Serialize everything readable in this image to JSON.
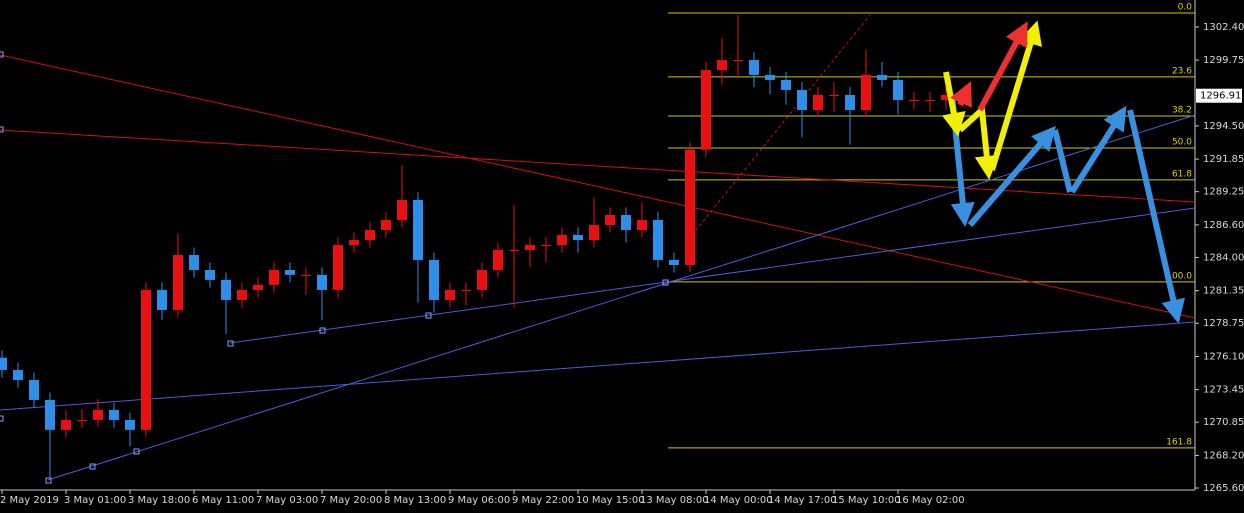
{
  "chart_data": {
    "type": "candlestick",
    "current_price": 1296.91,
    "up_color": "#e81010",
    "down_color": "#2e8fe8",
    "fib_color": "#d4c800",
    "categories": [
      "2 May 2019",
      null,
      null,
      null,
      "3 May 01:00",
      null,
      null,
      null,
      "3 May 18:00",
      null,
      null,
      null,
      "6 May 11:00",
      null,
      null,
      null,
      "7 May 03:00",
      null,
      null,
      null,
      "7 May 20:00",
      null,
      null,
      null,
      "8 May 13:00",
      null,
      null,
      null,
      "9 May 06:00",
      null,
      null,
      null,
      "9 May 22:00",
      null,
      null,
      null,
      "10 May 15:00",
      null,
      null,
      null,
      "13 May 08:00",
      null,
      null,
      null,
      "14 May 00:00",
      null,
      null,
      null,
      "14 May 17:00",
      null,
      null,
      null,
      "15 May 10:00",
      null,
      null,
      null,
      "16 May 02:00",
      null,
      null,
      null
    ],
    "open": [
      1276.0,
      1275.02,
      1274.22,
      1272.63,
      1270.24,
      1271.03,
      1271.03,
      1271.83,
      1271.03,
      1270.24,
      1281.41,
      1279.81,
      1284.2,
      1283.0,
      1282.21,
      1280.61,
      1281.41,
      1281.81,
      1283.0,
      1282.61,
      1282.61,
      1281.41,
      1284.99,
      1285.39,
      1286.19,
      1286.99,
      1288.59,
      1283.8,
      1280.61,
      1281.41,
      1281.41,
      1283.0,
      1284.6,
      1284.6,
      1284.99,
      1284.99,
      1285.8,
      1285.39,
      1286.59,
      1287.39,
      1286.19,
      1286.99,
      1283.8,
      1283.4,
      1292.6,
      1298.96,
      1299.76,
      1299.76,
      1298.57,
      1298.17,
      1297.37,
      1295.77,
      1296.97,
      1296.97,
      1295.77,
      1298.57,
      1298.17,
      1296.57,
      1296.57,
      1296.57
    ],
    "high": [
      1276.6,
      1275.6,
      1274.8,
      1273.2,
      1271.8,
      1271.9,
      1272.7,
      1272.4,
      1271.6,
      1282.0,
      1282.0,
      1285.9,
      1284.8,
      1283.6,
      1282.8,
      1282.0,
      1282.4,
      1283.6,
      1283.6,
      1283.2,
      1283.2,
      1285.6,
      1286.0,
      1286.8,
      1287.6,
      1291.4,
      1289.2,
      1284.4,
      1282.0,
      1282.0,
      1283.6,
      1285.2,
      1288.2,
      1285.6,
      1285.6,
      1286.4,
      1286.4,
      1288.8,
      1288.0,
      1288.0,
      1288.4,
      1287.6,
      1284.4,
      1293.2,
      1299.6,
      1301.5,
      1303.35,
      1300.4,
      1299.2,
      1298.8,
      1298.0,
      1297.6,
      1298.0,
      1297.6,
      1300.6,
      1299.6,
      1298.8,
      1297.2,
      1297.2,
      1298.6
    ],
    "low": [
      1274.4,
      1273.6,
      1272.0,
      1266.4,
      1269.6,
      1270.4,
      1270.5,
      1270.4,
      1268.9,
      1269.7,
      1279.0,
      1279.2,
      1282.4,
      1281.6,
      1277.9,
      1280.0,
      1280.8,
      1281.2,
      1282.0,
      1281.0,
      1279.0,
      1280.8,
      1284.4,
      1284.8,
      1285.6,
      1286.4,
      1280.4,
      1279.6,
      1280.0,
      1280.2,
      1280.8,
      1282.4,
      1280.0,
      1283.2,
      1283.6,
      1284.4,
      1284.4,
      1284.8,
      1286.0,
      1285.2,
      1285.6,
      1283.2,
      1282.8,
      1282.8,
      1292.0,
      1297.8,
      1298.4,
      1297.6,
      1297.0,
      1296.2,
      1293.6,
      1295.2,
      1295.6,
      1293.0,
      1295.2,
      1297.6,
      1295.4,
      1295.8,
      1295.6,
      1295.8
    ],
    "close": [
      1275.02,
      1274.22,
      1272.63,
      1270.24,
      1271.03,
      1271.03,
      1271.83,
      1271.03,
      1270.24,
      1281.41,
      1279.81,
      1284.2,
      1283.0,
      1282.21,
      1280.61,
      1281.41,
      1281.81,
      1283.0,
      1282.61,
      1282.61,
      1281.41,
      1284.99,
      1285.39,
      1286.19,
      1286.99,
      1288.59,
      1283.8,
      1280.61,
      1281.41,
      1281.41,
      1283.0,
      1284.6,
      1284.6,
      1284.99,
      1284.99,
      1285.8,
      1285.39,
      1286.59,
      1287.39,
      1286.19,
      1286.99,
      1283.8,
      1283.4,
      1292.6,
      1298.96,
      1299.76,
      1299.76,
      1298.57,
      1298.17,
      1297.37,
      1295.77,
      1296.97,
      1296.97,
      1295.77,
      1298.57,
      1298.17,
      1296.57,
      1296.57,
      1296.57,
      1296.97
    ],
    "ylim": [
      1265.44,
      1304.55
    ],
    "yticks": [
      {
        "value": 1302.4,
        "label": "1302.40"
      },
      1299.75,
      {
        "value": 1294.5,
        "label": "1294.50"
      },
      1291.85,
      1289.25,
      {
        "value": 1286.6,
        "label": "1286.60"
      },
      {
        "value": 1284,
        "label": "1284.00"
      },
      1281.35,
      1278.75,
      {
        "value": 1276.1,
        "label": "1276.10"
      },
      1273.45,
      1270.85,
      {
        "value": 1268.2,
        "label": "1268.20"
      },
      {
        "value": 1265.6,
        "label": "1265.60"
      }
    ],
    "fib_levels": [
      {
        "value": 1303.51,
        "label": "0.0"
      },
      {
        "value": 1298.41,
        "label": "23.6"
      },
      {
        "value": 1295.29,
        "label": "38.2"
      },
      {
        "value": 1292.74,
        "label": "50.0"
      },
      {
        "value": 1290.19,
        "label": "61.8"
      },
      {
        "value": 1282.05,
        "label": "100.0"
      },
      {
        "value": 1268.8,
        "label": "161.8"
      }
    ]
  }
}
